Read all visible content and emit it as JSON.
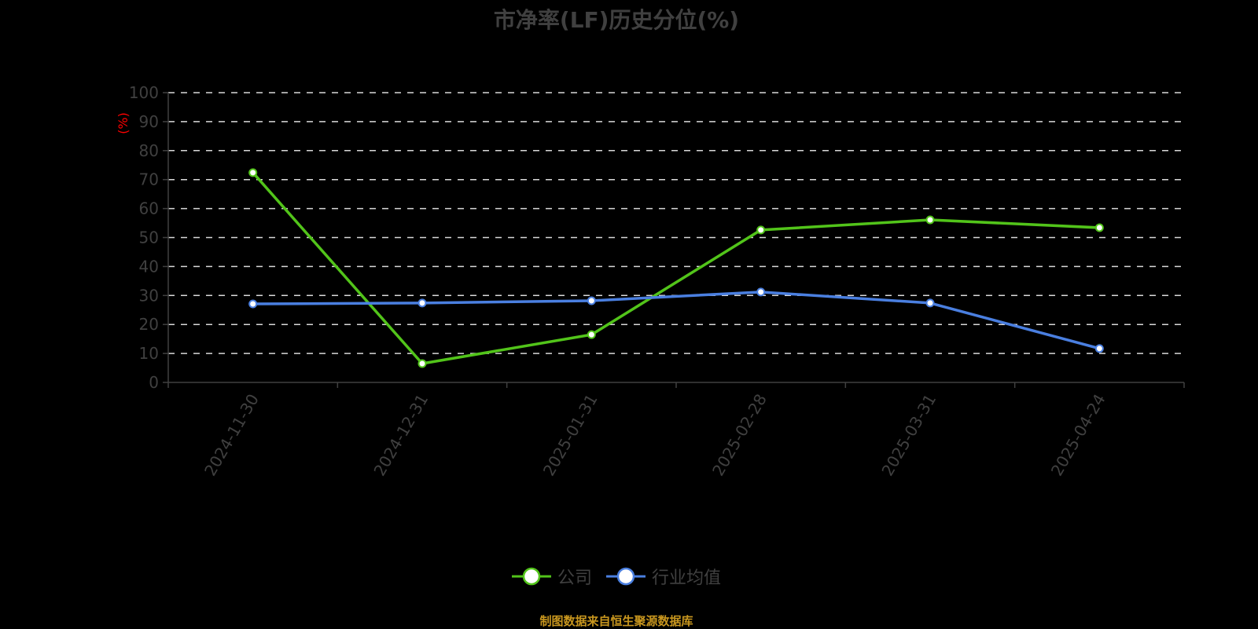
{
  "title": "市净率(LF)历史分位(%)",
  "y_unit": "(%)",
  "legend": {
    "company": "公司",
    "industry": "行业均值"
  },
  "source_note": "制图数据来自恒生聚源数据库",
  "colors": {
    "company": "#52c41a",
    "industry": "#4a7fe0",
    "grid": "#d9d9d9",
    "axis": "#404040",
    "unit": "#ff0000",
    "source": "#c8961e"
  },
  "chart_data": {
    "type": "line",
    "title": "市净率(LF)历史分位(%)",
    "xlabel": "",
    "ylabel": "(%)",
    "ylim": [
      0,
      100
    ],
    "yticks": [
      0,
      10,
      20,
      30,
      40,
      50,
      60,
      70,
      80,
      90,
      100
    ],
    "grid": true,
    "legend_position": "bottom",
    "categories": [
      "2024-11-30",
      "2024-12-31",
      "2025-01-31",
      "2025-02-28",
      "2025-03-31",
      "2025-04-24"
    ],
    "series": [
      {
        "name": "公司",
        "values": [
          72.4,
          6.5,
          16.5,
          52.6,
          56.1,
          53.4
        ]
      },
      {
        "name": "行业均值",
        "values": [
          27.1,
          27.4,
          28.2,
          31.2,
          27.4,
          11.7
        ]
      }
    ]
  }
}
